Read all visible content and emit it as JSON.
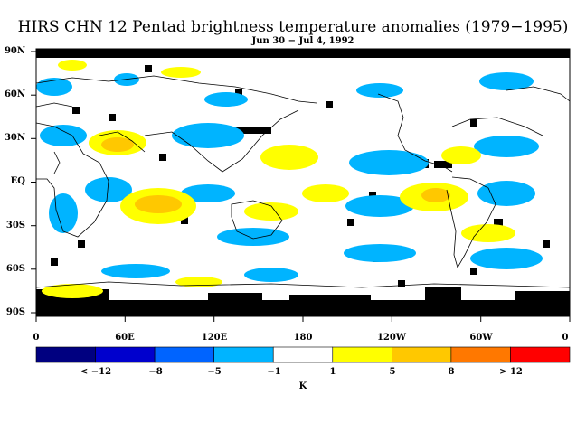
{
  "title": "HIRS CHN 12 Pentad brightness temperature anomalies (1979−1995)",
  "subtitle": "Jun 30 − Jul 4, 1992",
  "lat_labels": [
    "90N",
    "60N",
    "30N",
    "EQ",
    "30S",
    "60S",
    "90S"
  ],
  "lon_labels": [
    "0",
    "60E",
    "120E",
    "180",
    "120W",
    "60W",
    "0"
  ],
  "colorbar": {
    "colors": [
      "#000080",
      "#0000cd",
      "#0064ff",
      "#00b4ff",
      "#ffffff",
      "#ffff00",
      "#ffc800",
      "#ff7800",
      "#ff0000"
    ],
    "labels": [
      "< −12",
      "−8",
      "−5",
      "−1",
      "1",
      "5",
      "8",
      "> 12"
    ],
    "unit": "K"
  },
  "colors": {
    "map_blue": "#00b4ff",
    "map_yellow": "#ffff00",
    "map_orange": "#ffc800",
    "missing": "#000000"
  }
}
